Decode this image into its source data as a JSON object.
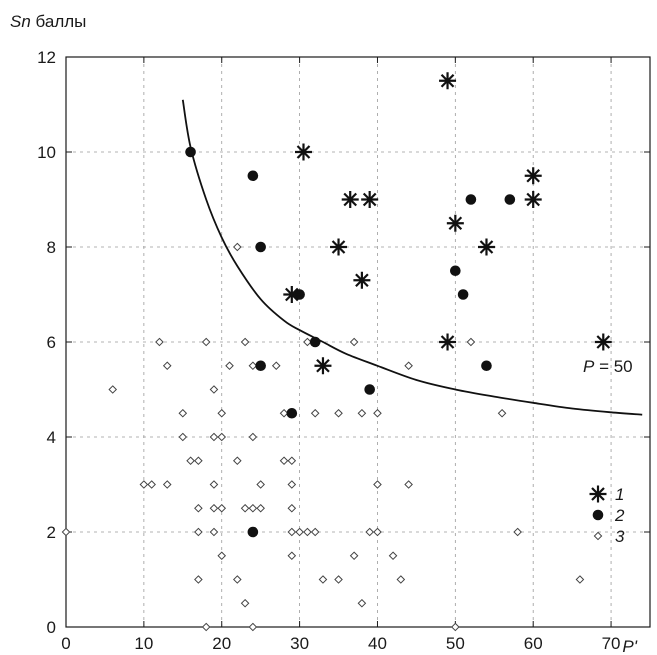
{
  "chart_data": {
    "type": "scatter",
    "title": "",
    "ylabel_italic": "Sn",
    "ylabel_rest": " баллы",
    "xlabel": "P'",
    "xlim": [
      0,
      75
    ],
    "ylim": [
      0,
      12
    ],
    "xticks": [
      0,
      10,
      20,
      30,
      40,
      50,
      60,
      70
    ],
    "yticks": [
      0,
      2,
      4,
      6,
      8,
      10,
      12
    ],
    "grid": true,
    "legend_position": "bottom-right",
    "curve": {
      "label_italic": "P",
      "label_rest": " = 50",
      "points": [
        [
          15,
          11.1
        ],
        [
          16,
          10.1
        ],
        [
          18,
          9.0
        ],
        [
          20,
          8.2
        ],
        [
          22,
          7.6
        ],
        [
          25,
          6.9
        ],
        [
          28,
          6.45
        ],
        [
          30,
          6.25
        ],
        [
          33,
          6.0
        ],
        [
          36,
          5.75
        ],
        [
          40,
          5.5
        ],
        [
          45,
          5.2
        ],
        [
          50,
          5.0
        ],
        [
          55,
          4.85
        ],
        [
          60,
          4.72
        ],
        [
          65,
          4.6
        ],
        [
          70,
          4.52
        ],
        [
          74,
          4.47
        ]
      ]
    },
    "series": [
      {
        "name": "1",
        "marker": "asterisk",
        "points": [
          [
            29,
            7
          ],
          [
            30.5,
            10
          ],
          [
            33,
            5.5
          ],
          [
            35,
            8
          ],
          [
            36.5,
            9
          ],
          [
            38,
            7.3
          ],
          [
            39,
            9
          ],
          [
            49,
            11.5
          ],
          [
            49,
            6
          ],
          [
            50,
            8.5
          ],
          [
            54,
            8
          ],
          [
            60,
            9.5
          ],
          [
            60,
            9
          ],
          [
            69,
            6
          ]
        ]
      },
      {
        "name": "2",
        "marker": "circle",
        "points": [
          [
            16,
            10
          ],
          [
            24,
            9.5
          ],
          [
            25,
            8
          ],
          [
            25,
            5.5
          ],
          [
            29,
            4.5
          ],
          [
            30,
            7
          ],
          [
            32,
            6
          ],
          [
            39,
            5
          ],
          [
            50,
            7.5
          ],
          [
            51,
            7
          ],
          [
            52,
            9
          ],
          [
            54,
            5.5
          ],
          [
            57,
            9
          ],
          [
            24,
            2
          ]
        ]
      },
      {
        "name": "3",
        "marker": "diamond",
        "points": [
          [
            0,
            2
          ],
          [
            6,
            5
          ],
          [
            10,
            3
          ],
          [
            11,
            3
          ],
          [
            12,
            6
          ],
          [
            13,
            5.5
          ],
          [
            13,
            3
          ],
          [
            15,
            4.5
          ],
          [
            15,
            4
          ],
          [
            16,
            3.5
          ],
          [
            17,
            3.5
          ],
          [
            17,
            2.5
          ],
          [
            17,
            2
          ],
          [
            17,
            1
          ],
          [
            18,
            6
          ],
          [
            18,
            0
          ],
          [
            19,
            5
          ],
          [
            19,
            4
          ],
          [
            19,
            3
          ],
          [
            19,
            2.5
          ],
          [
            19,
            2
          ],
          [
            20,
            4
          ],
          [
            20,
            4.5
          ],
          [
            20,
            2.5
          ],
          [
            20,
            1.5
          ],
          [
            21,
            5.5
          ],
          [
            22,
            3.5
          ],
          [
            22,
            8
          ],
          [
            22,
            1
          ],
          [
            23,
            6
          ],
          [
            23,
            2.5
          ],
          [
            23,
            0.5
          ],
          [
            24,
            5.5
          ],
          [
            24,
            4
          ],
          [
            24,
            2.5
          ],
          [
            24,
            2
          ],
          [
            24,
            0
          ],
          [
            25,
            3
          ],
          [
            25,
            2.5
          ],
          [
            27,
            5.5
          ],
          [
            28,
            3.5
          ],
          [
            28,
            4.5
          ],
          [
            29,
            3.5
          ],
          [
            29,
            3
          ],
          [
            29,
            2.5
          ],
          [
            29,
            2
          ],
          [
            29,
            1.5
          ],
          [
            30,
            2
          ],
          [
            31,
            6
          ],
          [
            31,
            2
          ],
          [
            32,
            4.5
          ],
          [
            32,
            2
          ],
          [
            33,
            1
          ],
          [
            35,
            4.5
          ],
          [
            35,
            1
          ],
          [
            37,
            6
          ],
          [
            37,
            1.5
          ],
          [
            38,
            4.5
          ],
          [
            38,
            0.5
          ],
          [
            39,
            2
          ],
          [
            40,
            3
          ],
          [
            40,
            4.5
          ],
          [
            40,
            2
          ],
          [
            42,
            1.5
          ],
          [
            43,
            1
          ],
          [
            44,
            5.5
          ],
          [
            44,
            3
          ],
          [
            50,
            0
          ],
          [
            52,
            6
          ],
          [
            56,
            4.5
          ],
          [
            58,
            2
          ],
          [
            66,
            1
          ]
        ]
      }
    ]
  }
}
